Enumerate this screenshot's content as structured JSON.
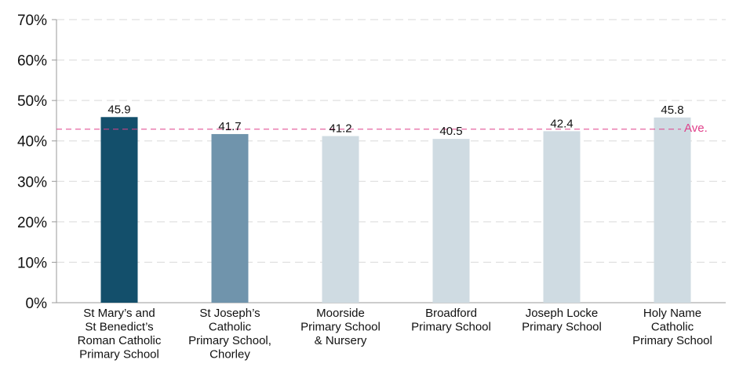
{
  "chart_data": {
    "type": "bar",
    "categories": [
      [
        "St Mary’s and",
        "St Benedict’s",
        "Roman Catholic",
        "Primary School"
      ],
      [
        "St Joseph’s",
        "Catholic",
        "Primary School,",
        "Chorley"
      ],
      [
        "Moorside",
        "Primary School",
        "& Nursery"
      ],
      [
        "Broadford",
        "Primary School"
      ],
      [
        "Joseph Locke",
        "Primary School"
      ],
      [
        "Holy Name",
        "Catholic",
        "Primary School"
      ]
    ],
    "values": [
      45.9,
      41.7,
      41.2,
      40.5,
      42.4,
      45.8
    ],
    "data_labels": [
      "45.9",
      "41.7",
      "41.2",
      "40.5",
      "42.4",
      "45.8"
    ],
    "bar_colors": [
      "#134f6b",
      "#7094ac",
      "#cfdbe2",
      "#cfdbe2",
      "#cfdbe2",
      "#cfdbe2"
    ],
    "ylim": [
      0,
      70
    ],
    "y_ticks": [
      0,
      10,
      20,
      30,
      40,
      50,
      60,
      70
    ],
    "y_tick_labels": [
      "0%",
      "10%",
      "20%",
      "30%",
      "40%",
      "50%",
      "60%",
      "70%"
    ],
    "grid": true,
    "grid_color": "#d9d9d9",
    "average": {
      "value": 42.9,
      "label": "Ave.",
      "color": "#e0408a"
    },
    "title": "",
    "xlabel": "",
    "ylabel": ""
  }
}
